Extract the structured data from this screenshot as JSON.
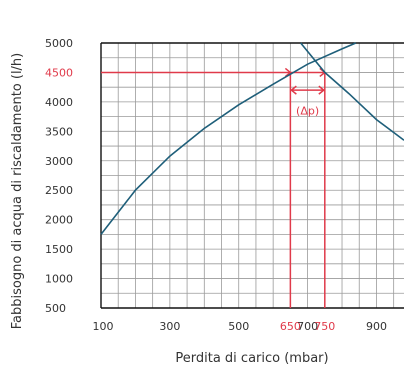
{
  "chart_data": {
    "type": "line",
    "xlabel": "Perdita di carico (mbar)",
    "ylabel": "Fabbisogno di acqua di riscaldamento (l/h)",
    "xlim": [
      100,
      980
    ],
    "ylim": [
      500,
      5000
    ],
    "grid": true,
    "x_ticks": [
      {
        "value": 100,
        "label": "100",
        "highlight": false
      },
      {
        "value": 300,
        "label": "300",
        "highlight": false
      },
      {
        "value": 500,
        "label": "500",
        "highlight": false
      },
      {
        "value": 650,
        "label": "650",
        "highlight": true
      },
      {
        "value": 700,
        "label": "700",
        "highlight": false
      },
      {
        "value": 750,
        "label": "750",
        "highlight": true
      },
      {
        "value": 900,
        "label": "900",
        "highlight": false
      }
    ],
    "y_ticks": [
      {
        "value": 500,
        "label": "500",
        "highlight": false
      },
      {
        "value": 1000,
        "label": "1000",
        "highlight": false
      },
      {
        "value": 1500,
        "label": "1500",
        "highlight": false
      },
      {
        "value": 2000,
        "label": "2000",
        "highlight": false
      },
      {
        "value": 2500,
        "label": "2500",
        "highlight": false
      },
      {
        "value": 3000,
        "label": "3000",
        "highlight": false
      },
      {
        "value": 3500,
        "label": "3500",
        "highlight": false
      },
      {
        "value": 4000,
        "label": "4000",
        "highlight": false
      },
      {
        "value": 4500,
        "label": "4500",
        "highlight": true
      },
      {
        "value": 5000,
        "label": "5000",
        "highlight": false
      }
    ],
    "series": [
      {
        "color": "#1f5f7a",
        "points": [
          [
            100,
            1750
          ],
          [
            200,
            2500
          ],
          [
            300,
            3080
          ],
          [
            400,
            3550
          ],
          [
            500,
            3950
          ],
          [
            600,
            4300
          ],
          [
            700,
            4640
          ],
          [
            800,
            4900
          ],
          [
            840,
            5000
          ]
        ]
      },
      {
        "color": "#1f5f7a",
        "points": [
          [
            680,
            5000
          ],
          [
            750,
            4500
          ],
          [
            820,
            4140
          ],
          [
            900,
            3700
          ],
          [
            980,
            3350
          ]
        ]
      }
    ],
    "annotation": {
      "label": "(Δp)",
      "color": "#e03a4a",
      "y_value": 4500,
      "x_from": 650,
      "x_to": 750
    }
  }
}
